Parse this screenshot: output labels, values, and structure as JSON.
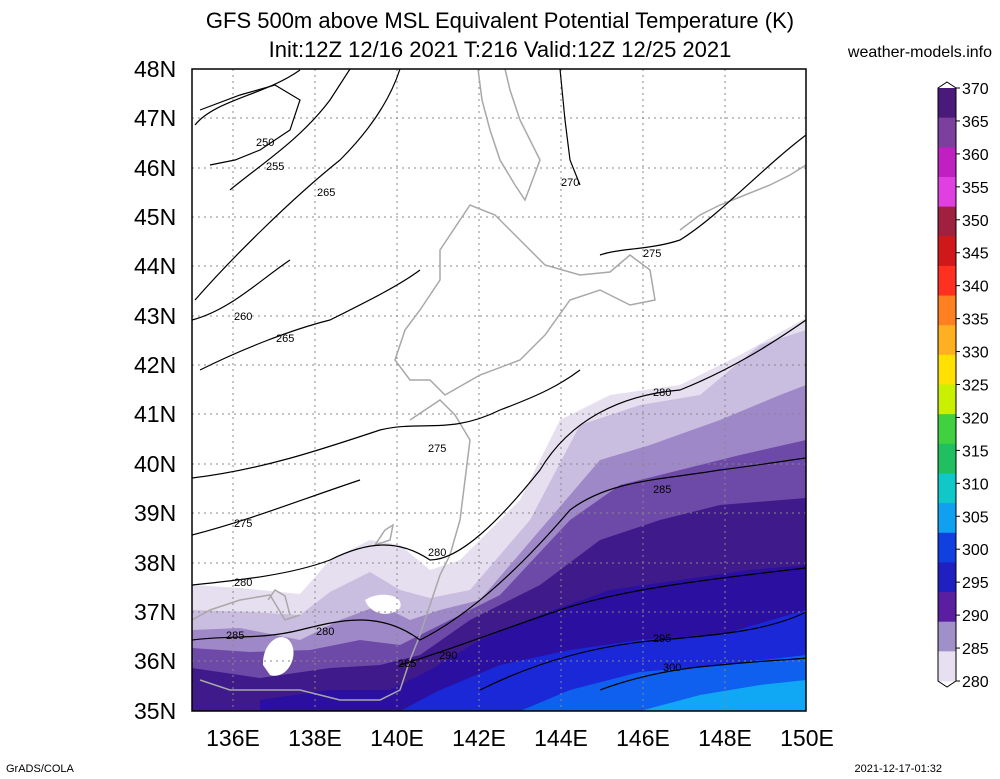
{
  "title": {
    "line1": "GFS 500m above MSL Equivalent Potential Temperature (K)",
    "line2": "Init:12Z 12/16 2021 T:216 Valid:12Z 12/25 2021"
  },
  "site": "weather-models.info",
  "footer": {
    "left": "GrADS/COLA",
    "right": "2021-12-17-01:32"
  },
  "map": {
    "lat_labels": [
      "48N",
      "47N",
      "46N",
      "45N",
      "44N",
      "43N",
      "42N",
      "41N",
      "40N",
      "39N",
      "38N",
      "37N",
      "36N",
      "35N"
    ],
    "lon_labels": [
      "136E",
      "138E",
      "140E",
      "142E",
      "144E",
      "146E",
      "148E",
      "150E"
    ],
    "lat_range": [
      35,
      48
    ],
    "lon_range": [
      135,
      150
    ],
    "contour_labels": [
      "250",
      "255",
      "265",
      "270",
      "275",
      "260",
      "265",
      "280",
      "275",
      "275",
      "280",
      "280",
      "285",
      "280",
      "285",
      "290",
      "285",
      "295",
      "300"
    ],
    "colors": {
      "coast": "#a8a8a8",
      "contour": "#000000",
      "grid": "#888888"
    }
  },
  "colorbar": {
    "labels": [
      "370",
      "365",
      "360",
      "355",
      "350",
      "345",
      "340",
      "335",
      "330",
      "325",
      "320",
      "315",
      "310",
      "305",
      "300",
      "295",
      "290",
      "285",
      "280"
    ],
    "colors": [
      "#4a1a7a",
      "#7b3f9e",
      "#c020c0",
      "#e040e0",
      "#a02040",
      "#d01818",
      "#ff3020",
      "#ff8020",
      "#ffb020",
      "#ffe000",
      "#c8f000",
      "#40d040",
      "#20c060",
      "#10c8c8",
      "#10a0f0",
      "#1040e0",
      "#2020c0",
      "#5a1fa0",
      "#a090c8",
      "#e8e0f0"
    ]
  }
}
